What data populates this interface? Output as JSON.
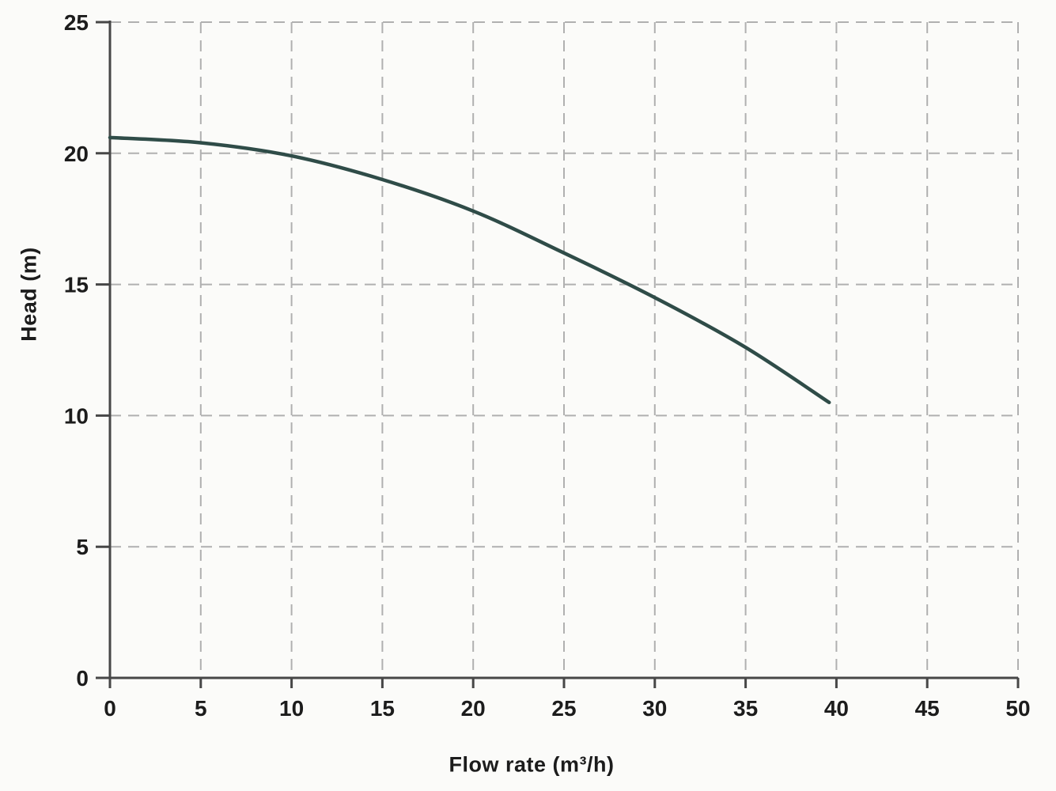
{
  "figure": {
    "background": "#fbfbf9"
  },
  "chart_data": {
    "type": "line",
    "xlabel": "Flow rate (m³/h)",
    "ylabel": "Head (m)",
    "xlim": [
      0,
      50
    ],
    "ylim": [
      0,
      25
    ],
    "x_ticks": [
      0,
      5,
      10,
      15,
      20,
      25,
      30,
      35,
      40,
      45,
      50
    ],
    "y_ticks": [
      0,
      5,
      10,
      15,
      20,
      25
    ],
    "grid": "dashed",
    "legend": "none",
    "series": [
      {
        "name": "head-vs-flow-curve",
        "color": "#2f4c48",
        "points": [
          [
            0,
            20.6
          ],
          [
            5,
            20.4
          ],
          [
            10,
            19.9
          ],
          [
            15,
            19.0
          ],
          [
            20,
            17.8
          ],
          [
            25,
            16.2
          ],
          [
            30,
            14.5
          ],
          [
            35,
            12.6
          ],
          [
            39.6,
            10.5
          ]
        ]
      }
    ],
    "colors": {
      "grid": "#b0b0b0",
      "axis": "#474747",
      "tick_label": "#1c1c1c"
    }
  }
}
